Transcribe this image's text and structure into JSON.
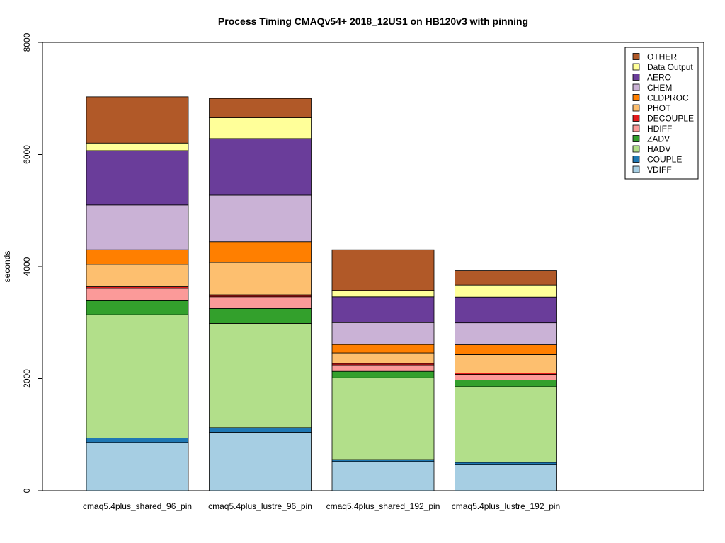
{
  "chart_data": {
    "type": "bar",
    "stacked": true,
    "title": "Process Timing CMAQv54+ 2018_12US1 on HB120v3 with pinning",
    "xlabel": "",
    "ylabel": "seconds",
    "ylim": [
      0,
      8000
    ],
    "yticks": [
      0,
      2000,
      4000,
      6000,
      8000
    ],
    "grid": false,
    "legend_position": "top-right",
    "categories": [
      "cmaq5.4plus_shared_96_pin",
      "cmaq5.4plus_lustre_96_pin",
      "cmaq5.4plus_shared_192_pin",
      "cmaq5.4plus_lustre_192_pin"
    ],
    "series": [
      {
        "name": "VDIFF",
        "color": "#a6cee3",
        "values": [
          860,
          1040,
          520,
          470
        ]
      },
      {
        "name": "COUPLE",
        "color": "#1f78b4",
        "values": [
          80,
          85,
          35,
          35
        ]
      },
      {
        "name": "HADV",
        "color": "#b2df8a",
        "values": [
          2200,
          1860,
          1460,
          1350
        ]
      },
      {
        "name": "ZADV",
        "color": "#33a02c",
        "values": [
          250,
          265,
          115,
          120
        ]
      },
      {
        "name": "HDIFF",
        "color": "#fb9a99",
        "values": [
          220,
          210,
          115,
          100
        ]
      },
      {
        "name": "DECOUPLE",
        "color": "#e31a1c",
        "values": [
          30,
          35,
          25,
          25
        ]
      },
      {
        "name": "PHOT",
        "color": "#fdbf6f",
        "values": [
          400,
          580,
          190,
          330
        ]
      },
      {
        "name": "CLDPROC",
        "color": "#ff7f00",
        "values": [
          260,
          370,
          150,
          175
        ]
      },
      {
        "name": "CHEM",
        "color": "#cab2d6",
        "values": [
          800,
          830,
          390,
          390
        ]
      },
      {
        "name": "AERO",
        "color": "#6a3d9a",
        "values": [
          970,
          1010,
          460,
          460
        ]
      },
      {
        "name": "Data Output",
        "color": "#ffff99",
        "values": [
          135,
          370,
          115,
          215
        ]
      },
      {
        "name": "OTHER",
        "color": "#b15928",
        "values": [
          825,
          345,
          725,
          260
        ]
      }
    ]
  }
}
